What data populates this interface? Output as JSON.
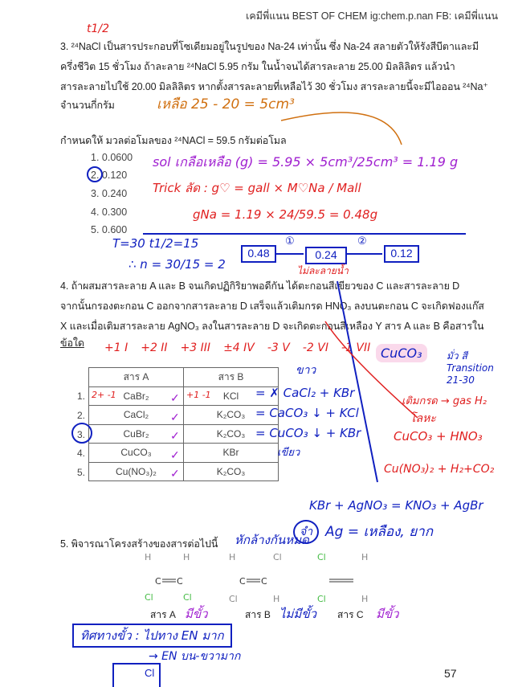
{
  "header": "เคมีพี่แนน BEST OF CHEM ig:chem.p.nan FB: เคมีพี่แนน",
  "q3": {
    "lines": [
      "3. ²⁴NaCl เป็นสารประกอบที่โซเดียมอยู่ในรูปของ Na-24 เท่านั้น ซึ่ง Na-24 สลายตัวให้รังสีบีตาและมี",
      "ครึ่งชีวิต 15 ชั่วโมง ถ้าละลาย ²⁴NaCl 5.95 กรัม ในน้ำจนได้สารละลาย 25.00 มิลลิลิตร แล้วนำ",
      "สารละลายไปใช้ 20.00 มิลลิลิตร หากตั้งสารละลายที่เหลือไว้ 30 ชั่วโมง สารละลายนี้จะมีไอออน ²⁴Na⁺",
      "จำนวนกี่กรัม"
    ],
    "given": "กำหนดให้ มวลต่อโมลของ ²⁴NACl = 59.5 กรัมต่อโมล",
    "choices": [
      "1. 0.0600",
      "2. 0.120",
      "3. 0.240",
      "4. 0.300",
      "5. 0.600"
    ]
  },
  "q4": {
    "lines": [
      "4. ถ้าผสมสารละลาย A และ B จนเกิดปฏิกิริยาพอดีกัน ได้ตะกอนสีเขียวของ C และสารละลาย D",
      "จากนั้นกรองตะกอน C ออกจากสารละลาย D เสร็จแล้วเติมกรด HNO₃ ลงบนตะกอน C จะเกิดฟองแก๊ส",
      "X และเมื่อเติมสารละลาย AgNO₃ ลงในสารละลาย D จะเกิดตะกอนสีเหลือง Y สาร A และ B คือสารใน",
      "ข้อใด"
    ],
    "table": {
      "headers": [
        "สาร A",
        "สาร B"
      ],
      "rows": [
        [
          "1.",
          "CaBr₂",
          "KCl"
        ],
        [
          "2.",
          "CaCl₂",
          "K₂CO₃"
        ],
        [
          "3.",
          "CuBr₂",
          "K₂CO₃"
        ],
        [
          "4.",
          "CuCO₃",
          "KBr"
        ],
        [
          "5.",
          "Cu(NO₃)₂",
          "K₂CO₃"
        ]
      ]
    }
  },
  "q5": {
    "title": "5. พิจารณาโครงสร้างของสารต่อไปนี้",
    "labels": [
      "สาร A",
      "สาร B",
      "สาร C"
    ],
    "atoms": {
      "H": "H",
      "C": "C",
      "Cl": "Cl"
    }
  },
  "page_number": "57",
  "notes": {
    "t12": "t1/2",
    "remain": "เหลือ 25 - 20 = 5cm³",
    "sol": "sol เกลือเหลือ (g) = 5.95 × 5cm³/25cm³ = 1.19 g",
    "trick": "Trick ลัด : g♡ = gall × M♡Na / Mall",
    "gna": "gNa = 1.19 × 24/59.5 = 0.48g",
    "T": "T=30   t1/2=15",
    "n": "∴ n = 30/15 = 2",
    "b1": "0.48",
    "b2": "0.24",
    "b3": "0.12",
    "s1": "①",
    "s2": "②",
    "nodis": "ไม่ละลายน้ำ",
    "ox": [
      "+1 I",
      "+2 II",
      "+3 III",
      "±4 IV",
      "-3 V",
      "-2 VI",
      "-1 VII"
    ],
    "ox_ab": [
      "2+ -1",
      "+1 -1"
    ],
    "cuco3": "CuCO₃",
    "trans": "มั่ว สี Transition 21-30",
    "white": "ขาว",
    "eq1": "= ✗ CaCl₂ + KBr",
    "eq2": "= CaCO₃ ↓ + KCl",
    "eq3": "= CuCO₃ ↓ + KBr",
    "green": "เขียว",
    "acid": "เติมกรด → gas H₂",
    "metal": "โลหะ",
    "r1": "CuCO₃ + HNO₃",
    "r2": "Cu(NO₃)₂ + H₂+CO₂",
    "agbr": "KBr + AgNO₃ = KNO₃ + AgBr",
    "memo": "จำ",
    "ag": "Ag = เหลือง, ยาก",
    "cancel": "หักล้างกันหมด",
    "polar": "มีขั้ว",
    "nonpolar": "ไม่มีขั้ว",
    "polar2": "มีขั้ว",
    "dir": "ทิศทางขั้ว : ไปทาง EN มาก",
    "en": "→ EN บน-ขวามาก",
    "cl": "Cl"
  }
}
